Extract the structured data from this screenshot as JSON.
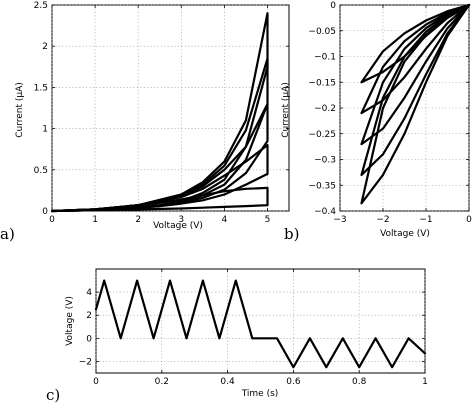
{
  "chart_data": [
    {
      "panel": "a)",
      "type": "line",
      "xlabel": "Voltage (V)",
      "ylabel": "Current (µA)",
      "xlim": [
        0,
        5.5
      ],
      "ylim": [
        0,
        2.5
      ],
      "xticks": [
        "0",
        "1",
        "2",
        "3",
        "4",
        "5"
      ],
      "yticks": [
        "0",
        "0.5",
        "1",
        "1.5",
        "2",
        "2.5"
      ],
      "grid": true,
      "series": [
        {
          "upper": [
            [
              0,
              0
            ],
            [
              1,
              0.02
            ],
            [
              2,
              0.07
            ],
            [
              3,
              0.2
            ],
            [
              3.5,
              0.35
            ],
            [
              4,
              0.6
            ],
            [
              4.5,
              1.1
            ],
            [
              5,
              2.4
            ]
          ],
          "lower": [
            [
              0,
              0
            ],
            [
              1,
              0.01
            ],
            [
              2,
              0.04
            ],
            [
              2.5,
              0.07
            ],
            [
              3,
              0.12
            ],
            [
              3.5,
              0.22
            ],
            [
              4,
              0.38
            ],
            [
              4.5,
              0.78
            ],
            [
              5,
              1.75
            ]
          ]
        },
        {
          "upper": [
            [
              0,
              0
            ],
            [
              1,
              0.02
            ],
            [
              2,
              0.07
            ],
            [
              3,
              0.19
            ],
            [
              3.5,
              0.32
            ],
            [
              4,
              0.55
            ],
            [
              4.5,
              0.98
            ],
            [
              5,
              1.85
            ]
          ],
          "lower": [
            [
              0,
              0
            ],
            [
              1,
              0.01
            ],
            [
              2,
              0.04
            ],
            [
              2.5,
              0.07
            ],
            [
              3,
              0.11
            ],
            [
              3.5,
              0.19
            ],
            [
              4,
              0.32
            ],
            [
              4.5,
              0.62
            ],
            [
              5,
              1.3
            ]
          ]
        },
        {
          "upper": [
            [
              0,
              0
            ],
            [
              1,
              0.02
            ],
            [
              2,
              0.07
            ],
            [
              3,
              0.18
            ],
            [
              3.5,
              0.3
            ],
            [
              4,
              0.5
            ],
            [
              4.5,
              0.78
            ],
            [
              5,
              1.3
            ]
          ],
          "lower": [
            [
              0,
              0
            ],
            [
              1,
              0.01
            ],
            [
              2,
              0.04
            ],
            [
              2.5,
              0.06
            ],
            [
              3,
              0.1
            ],
            [
              3.5,
              0.16
            ],
            [
              4,
              0.26
            ],
            [
              4.5,
              0.46
            ],
            [
              5,
              0.85
            ]
          ]
        },
        {
          "upper": [
            [
              0,
              0
            ],
            [
              1,
              0.02
            ],
            [
              2,
              0.07
            ],
            [
              3,
              0.17
            ],
            [
              3.5,
              0.27
            ],
            [
              4,
              0.43
            ],
            [
              4.5,
              0.6
            ],
            [
              5,
              0.8
            ]
          ],
          "lower": [
            [
              0,
              0
            ],
            [
              1,
              0.01
            ],
            [
              2,
              0.04
            ],
            [
              2.5,
              0.06
            ],
            [
              3,
              0.09
            ],
            [
              3.5,
              0.13
            ],
            [
              4,
              0.2
            ],
            [
              4.5,
              0.32
            ],
            [
              5,
              0.45
            ]
          ]
        },
        {
          "upper": [
            [
              0,
              0
            ],
            [
              1,
              0.02
            ],
            [
              2,
              0.06
            ],
            [
              3,
              0.14
            ],
            [
              3.5,
              0.19
            ],
            [
              4,
              0.24
            ],
            [
              4.5,
              0.27
            ],
            [
              5,
              0.28
            ]
          ],
          "lower": [
            [
              0,
              0
            ],
            [
              1,
              0.01
            ],
            [
              2,
              0.02
            ],
            [
              3,
              0.03
            ],
            [
              3.5,
              0.04
            ],
            [
              4,
              0.05
            ],
            [
              4.5,
              0.06
            ],
            [
              5,
              0.07
            ]
          ]
        }
      ]
    },
    {
      "panel": "b)",
      "type": "line",
      "xlabel": "Voltage (V)",
      "ylabel": "Current (µA)",
      "xlim": [
        -3,
        0
      ],
      "ylim": [
        -0.4,
        0
      ],
      "xticks": [
        "−3",
        "−2",
        "−1",
        "0"
      ],
      "yticks": [
        "0",
        "−0.05",
        "−0.1",
        "−0.15",
        "−0.2",
        "−0.25",
        "−0.3",
        "−0.35",
        "−0.4"
      ],
      "grid": true,
      "series": [
        {
          "upper": [
            [
              0,
              0
            ],
            [
              -0.5,
              -0.012
            ],
            [
              -1,
              -0.03
            ],
            [
              -1.5,
              -0.055
            ],
            [
              -2,
              -0.09
            ],
            [
              -2.5,
              -0.15
            ]
          ],
          "lower": [
            [
              0,
              0
            ],
            [
              -0.5,
              -0.025
            ],
            [
              -1,
              -0.06
            ],
            [
              -1.5,
              -0.1
            ],
            [
              -2,
              -0.13
            ],
            [
              -2.5,
              -0.15
            ]
          ]
        },
        {
          "upper": [
            [
              0,
              0
            ],
            [
              -0.5,
              -0.015
            ],
            [
              -1,
              -0.038
            ],
            [
              -1.5,
              -0.07
            ],
            [
              -2,
              -0.12
            ],
            [
              -2.5,
              -0.21
            ]
          ],
          "lower": [
            [
              0,
              0
            ],
            [
              -0.5,
              -0.035
            ],
            [
              -1,
              -0.085
            ],
            [
              -1.5,
              -0.14
            ],
            [
              -2,
              -0.185
            ],
            [
              -2.5,
              -0.21
            ]
          ]
        },
        {
          "upper": [
            [
              0,
              0
            ],
            [
              -0.5,
              -0.017
            ],
            [
              -1,
              -0.045
            ],
            [
              -1.5,
              -0.085
            ],
            [
              -2,
              -0.15
            ],
            [
              -2.5,
              -0.27
            ]
          ],
          "lower": [
            [
              0,
              0
            ],
            [
              -0.5,
              -0.045
            ],
            [
              -1,
              -0.11
            ],
            [
              -1.5,
              -0.18
            ],
            [
              -2,
              -0.24
            ],
            [
              -2.5,
              -0.27
            ]
          ]
        },
        {
          "upper": [
            [
              0,
              0
            ],
            [
              -0.5,
              -0.02
            ],
            [
              -1,
              -0.052
            ],
            [
              -1.5,
              -0.1
            ],
            [
              -2,
              -0.18
            ],
            [
              -2.5,
              -0.33
            ]
          ],
          "lower": [
            [
              0,
              0
            ],
            [
              -0.5,
              -0.055
            ],
            [
              -1,
              -0.135
            ],
            [
              -1.5,
              -0.22
            ],
            [
              -2,
              -0.29
            ],
            [
              -2.5,
              -0.33
            ]
          ]
        },
        {
          "upper": [
            [
              0,
              0
            ],
            [
              -0.5,
              -0.022
            ],
            [
              -1,
              -0.058
            ],
            [
              -1.5,
              -0.11
            ],
            [
              -2,
              -0.2
            ],
            [
              -2.5,
              -0.385
            ]
          ],
          "lower": [
            [
              0,
              0
            ],
            [
              -0.5,
              -0.06
            ],
            [
              -1,
              -0.15
            ],
            [
              -1.5,
              -0.25
            ],
            [
              -2,
              -0.33
            ],
            [
              -2.5,
              -0.385
            ]
          ]
        }
      ]
    },
    {
      "panel": "c)",
      "type": "line",
      "xlabel": "Time (s)",
      "ylabel": "Voltage (V)",
      "xlim": [
        0,
        1
      ],
      "ylim": [
        -3,
        6
      ],
      "xticks": [
        "0",
        "0.2",
        "0.4",
        "0.6",
        "0.8",
        "1"
      ],
      "yticks": [
        "−2",
        "0",
        "2",
        "4"
      ],
      "grid": true,
      "series": [
        {
          "x": [
            0,
            0.025,
            0.075,
            0.125,
            0.175,
            0.225,
            0.275,
            0.325,
            0.375,
            0.425,
            0.475,
            0.525,
            0.55,
            0.6,
            0.65,
            0.7,
            0.75,
            0.8,
            0.85,
            0.9,
            0.95,
            1.0
          ],
          "y": [
            2.5,
            5,
            0,
            5,
            0,
            5,
            0,
            5,
            0,
            5,
            0,
            0,
            -0.0,
            -2.5,
            0,
            -2.5,
            0,
            -2.5,
            0,
            -2.5,
            0,
            -1.3
          ]
        }
      ]
    }
  ]
}
